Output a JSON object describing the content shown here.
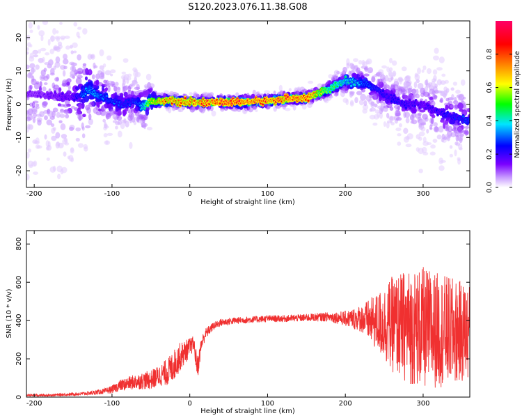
{
  "figure_title": "S120.2023.076.11.38.G08",
  "chart_data": [
    {
      "type": "heatmap",
      "title": "",
      "xlabel": "Height of straight line (km)",
      "ylabel": "Frequency (Hz)",
      "xlim": [
        -210,
        360
      ],
      "ylim": [
        -25,
        25
      ],
      "xticks": [
        -200,
        -100,
        0,
        100,
        200,
        300
      ],
      "yticks": [
        -20,
        -10,
        0,
        10,
        20
      ],
      "colorbar": {
        "label": "Normalized spectral amplitude",
        "range": [
          0,
          1
        ],
        "ticks": [
          0.0,
          0.2,
          0.4,
          0.6,
          0.8
        ],
        "colormap": "rainbow (white-purple-blue-cyan-green-yellow-orange-red-magenta)",
        "stops": [
          "#ffffff",
          "#7a00ff",
          "#0000ff",
          "#00e5ff",
          "#00ff00",
          "#ffff00",
          "#ff8000",
          "#ff0000",
          "#ff0066"
        ]
      },
      "ridge": {
        "x": [
          -200,
          -150,
          -130,
          -110,
          -90,
          -70,
          -60,
          -50,
          -30,
          0,
          50,
          100,
          150,
          175,
          200,
          225,
          250,
          275,
          300,
          325,
          360
        ],
        "frequency": [
          3,
          2,
          4,
          2,
          0,
          1,
          -1,
          1,
          1,
          0.5,
          0.5,
          1,
          2,
          4,
          7,
          6,
          3,
          0,
          0,
          -3,
          -5
        ],
        "amplitude": [
          0.15,
          0.2,
          0.4,
          0.35,
          0.3,
          0.3,
          0.4,
          0.7,
          0.85,
          0.85,
          0.95,
          0.9,
          0.9,
          0.6,
          0.45,
          0.35,
          0.25,
          0.25,
          0.2,
          0.25,
          0.3
        ]
      },
      "noise_spread_hz": {
        "x": [
          -210,
          -150,
          -120,
          -60,
          -40,
          170,
          240,
          300,
          360
        ],
        "halfwidth": [
          25,
          22,
          10,
          8,
          2,
          2,
          8,
          12,
          10
        ]
      }
    },
    {
      "type": "line",
      "title": "",
      "xlabel": "Height of straight line (km)",
      "ylabel": "SNR (10 * v/v)",
      "xlim": [
        -210,
        360
      ],
      "ylim": [
        0,
        870
      ],
      "xticks": [
        -200,
        -100,
        0,
        100,
        200,
        300
      ],
      "yticks": [
        0,
        200,
        400,
        600,
        800
      ],
      "color": "#f03030",
      "series": [
        {
          "x": [
            -210,
            -180,
            -150,
            -130,
            -110,
            -100,
            -90,
            -70,
            -50,
            -35,
            -25,
            -15,
            -5,
            0,
            5,
            10,
            15,
            20,
            30,
            40,
            60,
            80,
            100,
            120,
            150,
            180,
            200,
            220,
            240,
            260,
            280,
            300,
            320,
            340,
            360
          ],
          "values": [
            10,
            10,
            15,
            20,
            30,
            40,
            60,
            80,
            90,
            120,
            140,
            200,
            240,
            260,
            280,
            150,
            280,
            330,
            370,
            390,
            400,
            405,
            410,
            410,
            415,
            420,
            410,
            410,
            390,
            380,
            370,
            360,
            350,
            340,
            340
          ],
          "spread": [
            6,
            6,
            8,
            10,
            15,
            20,
            30,
            40,
            50,
            60,
            80,
            80,
            60,
            50,
            40,
            60,
            40,
            30,
            20,
            20,
            18,
            18,
            18,
            18,
            20,
            25,
            40,
            70,
            150,
            250,
            300,
            320,
            300,
            280,
            250
          ]
        }
      ]
    }
  ]
}
